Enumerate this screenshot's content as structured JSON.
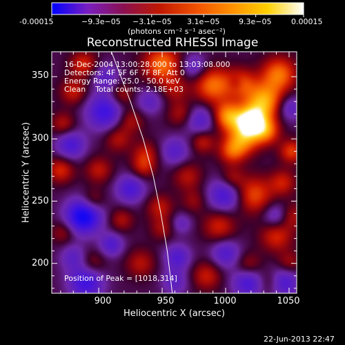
{
  "colorbar": {
    "tick_labels": [
      "-0.00015",
      "−9.3e−05",
      "−3.1e−05",
      "3.1e−05",
      "9.3e−05",
      "0.00015"
    ],
    "unit_label": "(photons cm⁻² s⁻¹ asec⁻²)",
    "range": [
      -0.00015,
      0.00015
    ],
    "colors": [
      "#0000ff",
      "#7a1fc0",
      "#8a1050",
      "#c01800",
      "#f05000",
      "#ff9000",
      "#ffd000",
      "#ffffff"
    ]
  },
  "title": "Reconstructed RHESSI Image",
  "annotations": {
    "line1": "16-Dec-2004 13:00:28.000 to 13:03:08.000",
    "line2": "Detectors: 4F 5F 6F 7F 8F, Att 0",
    "line3": "Energy Range: 25.0 - 50.0 keV",
    "line4": "Clean    Total counts: 2.18E+03",
    "peak": "Position of Peak = [1018,314]"
  },
  "footer": {
    "timestamp": "22-Jun-2013 22:47"
  },
  "chart_data": {
    "type": "heatmap",
    "title": "Reconstructed RHESSI Image",
    "xlabel": "Heliocentric X (arcsec)",
    "ylabel": "Heliocentric Y (arcsec)",
    "xlim": [
      863,
      1056
    ],
    "ylim": [
      176,
      370
    ],
    "x_ticks": [
      900,
      950,
      1000,
      1050
    ],
    "y_ticks": [
      200,
      250,
      300,
      350
    ],
    "x_tick_labels": [
      "900",
      "950",
      "1000",
      "1050"
    ],
    "y_tick_labels": [
      "200",
      "250",
      "300",
      "350"
    ],
    "grid": false,
    "value_range": [
      -0.00015,
      0.00015
    ],
    "peak_position": [
      1018,
      314
    ],
    "limb_curve": [
      [
        910,
        370
      ],
      [
        925,
        330
      ],
      [
        935,
        300
      ],
      [
        943,
        270
      ],
      [
        949,
        240
      ],
      [
        954,
        210
      ],
      [
        958,
        176
      ]
    ],
    "blobs": [
      [
        1020,
        314,
        1.0,
        11
      ],
      [
        1030,
        330,
        0.78,
        14
      ],
      [
        1002,
        318,
        0.7,
        11
      ],
      [
        1014,
        300,
        0.6,
        12
      ],
      [
        1032,
        306,
        0.55,
        10
      ],
      [
        990,
        343,
        0.6,
        14
      ],
      [
        1042,
        352,
        0.6,
        13
      ],
      [
        950,
        360,
        0.6,
        14
      ],
      [
        1005,
        290,
        0.45,
        10
      ],
      [
        982,
        298,
        0.35,
        9
      ],
      [
        1052,
        290,
        0.45,
        9
      ],
      [
        1022,
        255,
        0.5,
        14
      ],
      [
        1045,
        265,
        0.35,
        10
      ],
      [
        995,
        230,
        0.38,
        12
      ],
      [
        1040,
        222,
        0.4,
        12
      ],
      [
        1052,
        238,
        0.3,
        10
      ],
      [
        970,
        270,
        0.3,
        11
      ],
      [
        985,
        190,
        0.35,
        11
      ],
      [
        1018,
        198,
        0.3,
        10
      ],
      [
        933,
        200,
        0.3,
        11
      ],
      [
        948,
        245,
        0.32,
        10
      ],
      [
        950,
        228,
        0.25,
        9
      ],
      [
        937,
        288,
        0.32,
        10
      ],
      [
        935,
        277,
        0.3,
        9
      ],
      [
        925,
        315,
        0.3,
        10
      ],
      [
        915,
        300,
        0.3,
        10
      ],
      [
        900,
        275,
        0.32,
        10
      ],
      [
        895,
        250,
        0.3,
        9
      ],
      [
        870,
        275,
        0.4,
        10
      ],
      [
        872,
        312,
        0.3,
        9
      ],
      [
        880,
        338,
        0.35,
        10
      ],
      [
        888,
        360,
        0.4,
        10
      ],
      [
        918,
        335,
        0.3,
        9
      ],
      [
        895,
        200,
        0.25,
        10
      ],
      [
        918,
        235,
        0.28,
        9
      ],
      [
        872,
        225,
        0.25,
        9
      ],
      [
        965,
        320,
        0.3,
        10
      ],
      [
        960,
        340,
        0.25,
        10
      ],
      [
        1005,
        268,
        0.3,
        9
      ],
      [
        1035,
        185,
        0.3,
        10
      ],
      [
        1050,
        200,
        0.28,
        9
      ],
      [
        975,
        250,
        0.22,
        9
      ],
      [
        1012,
        345,
        0.45,
        11
      ],
      [
        888,
        238,
        -0.85,
        13
      ],
      [
        905,
        322,
        -0.55,
        14
      ],
      [
        878,
        295,
        -0.45,
        11
      ],
      [
        925,
        260,
        -0.45,
        11
      ],
      [
        890,
        185,
        -0.55,
        13
      ],
      [
        1018,
        185,
        -0.5,
        12
      ],
      [
        1045,
        185,
        -0.5,
        12
      ],
      [
        1000,
        255,
        -0.5,
        13
      ],
      [
        980,
        315,
        -0.4,
        12
      ],
      [
        1000,
        208,
        -0.4,
        11
      ],
      [
        962,
        205,
        -0.4,
        10
      ],
      [
        1040,
        238,
        -0.35,
        10
      ],
      [
        960,
        290,
        -0.35,
        11
      ],
      [
        905,
        350,
        -0.3,
        10
      ],
      [
        940,
        330,
        -0.3,
        10
      ],
      [
        975,
        358,
        -0.35,
        10
      ],
      [
        1050,
        325,
        -0.35,
        10
      ],
      [
        880,
        205,
        -0.3,
        10
      ],
      [
        965,
        232,
        -0.25,
        8
      ],
      [
        1008,
        345,
        -0.2,
        6
      ],
      [
        910,
        215,
        -0.4,
        9
      ],
      [
        960,
        185,
        -0.3,
        10
      ]
    ]
  }
}
